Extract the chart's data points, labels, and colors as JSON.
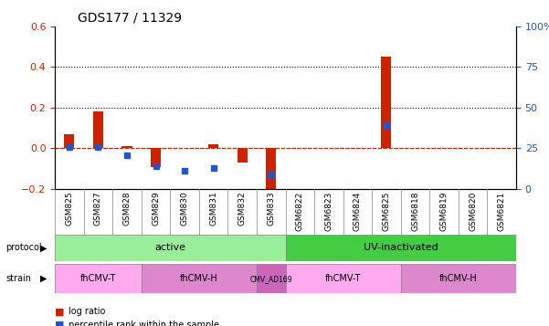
{
  "title": "GDS177 / 11329",
  "samples": [
    "GSM825",
    "GSM827",
    "GSM828",
    "GSM829",
    "GSM830",
    "GSM831",
    "GSM832",
    "GSM833",
    "GSM6822",
    "GSM6823",
    "GSM6824",
    "GSM6825",
    "GSM6818",
    "GSM6819",
    "GSM6820",
    "GSM6821"
  ],
  "log_ratio": [
    0.07,
    0.18,
    0.01,
    -0.09,
    0.0,
    0.02,
    -0.07,
    -0.23,
    0.0,
    0.0,
    0.0,
    0.45,
    0.0,
    0.0,
    0.0,
    0.0
  ],
  "pct_rank": [
    0.26,
    0.26,
    0.21,
    0.14,
    0.11,
    0.13,
    null,
    0.09,
    null,
    null,
    null,
    0.39,
    null,
    null,
    null,
    null
  ],
  "ylim": [
    -0.2,
    0.6
  ],
  "y2lim": [
    0,
    100
  ],
  "yticks_left": [
    -0.2,
    0.0,
    0.2,
    0.4,
    0.6
  ],
  "yticks_right": [
    0,
    25,
    50,
    75,
    100
  ],
  "hlines": [
    0.0,
    0.2,
    0.4
  ],
  "bar_color": "#cc2200",
  "dot_color": "#2255cc",
  "protocol_labels": [
    {
      "text": "active",
      "start": 0,
      "end": 8,
      "color": "#99ee99"
    },
    {
      "text": "UV-inactivated",
      "start": 8,
      "end": 16,
      "color": "#44cc44"
    }
  ],
  "strain_labels": [
    {
      "text": "fhCMV-T",
      "start": 0,
      "end": 3,
      "color": "#ffaaee"
    },
    {
      "text": "fhCMV-H",
      "start": 3,
      "end": 7,
      "color": "#dd88cc"
    },
    {
      "text": "CMV_AD169",
      "start": 7,
      "end": 8,
      "color": "#cc66bb"
    },
    {
      "text": "fhCMV-T",
      "start": 8,
      "end": 12,
      "color": "#ffaaee"
    },
    {
      "text": "fhCMV-H",
      "start": 12,
      "end": 16,
      "color": "#dd88cc"
    }
  ],
  "legend_items": [
    {
      "label": "log ratio",
      "color": "#cc2200"
    },
    {
      "label": "percentile rank within the sample",
      "color": "#2255cc"
    }
  ]
}
